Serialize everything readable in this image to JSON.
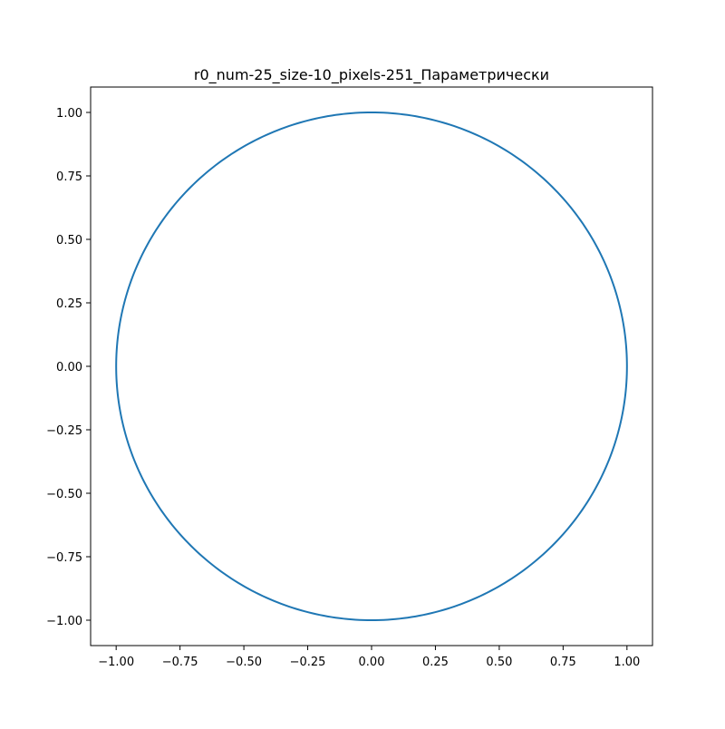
{
  "chart_data": {
    "type": "line",
    "title": "r0_num-25_size-10_pixels-251_Параметрически",
    "xlabel": "",
    "ylabel": "",
    "xlim": [
      -1.1,
      1.1
    ],
    "ylim": [
      -1.1,
      1.1
    ],
    "x_ticks": [
      -1.0,
      -0.75,
      -0.5,
      -0.25,
      0.0,
      0.25,
      0.5,
      0.75,
      1.0
    ],
    "x_tick_labels": [
      "−1.00",
      "−0.75",
      "−0.50",
      "−0.25",
      "0.00",
      "0.25",
      "0.50",
      "0.75",
      "1.00"
    ],
    "y_ticks": [
      1.0,
      0.75,
      0.5,
      0.25,
      0.0,
      -0.25,
      -0.5,
      -0.75,
      -1.0
    ],
    "y_tick_labels": [
      "1.00",
      "0.75",
      "0.50",
      "0.25",
      "0.00",
      "−0.25",
      "−0.50",
      "−0.75",
      "−1.00"
    ],
    "grid": false,
    "series": [
      {
        "color": "#1f77b4",
        "shape": "unit circle",
        "parametric": "x = cos(t), y = sin(t)",
        "center": [
          0,
          0
        ],
        "radius": 1.0
      }
    ]
  }
}
